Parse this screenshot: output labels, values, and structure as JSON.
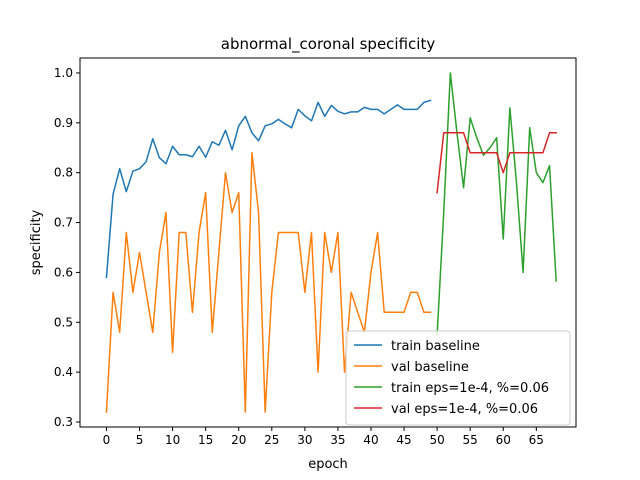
{
  "chart_data": {
    "type": "line",
    "title": "abnormal_coronal specificity",
    "xlabel": "epoch",
    "ylabel": "specificity",
    "xlim": [
      -4.0,
      71.0
    ],
    "ylim": [
      0.29,
      1.03
    ],
    "xticks": [
      0,
      5,
      10,
      15,
      20,
      25,
      30,
      35,
      40,
      45,
      50,
      55,
      60,
      65
    ],
    "yticks": [
      0.3,
      0.4,
      0.5,
      0.6,
      0.7,
      0.8,
      0.9,
      1.0
    ],
    "ytick_labels": [
      "0.3",
      "0.4",
      "0.5",
      "0.6",
      "0.7",
      "0.8",
      "0.9",
      "1.0"
    ],
    "grid": false,
    "legend_position": "lower-right",
    "series": [
      {
        "name": "train baseline",
        "color": "#1f77b4",
        "x_start": 0,
        "values": [
          0.59,
          0.757,
          0.808,
          0.762,
          0.803,
          0.808,
          0.822,
          0.868,
          0.83,
          0.818,
          0.853,
          0.836,
          0.836,
          0.832,
          0.853,
          0.831,
          0.862,
          0.855,
          0.885,
          0.846,
          0.894,
          0.913,
          0.88,
          0.864,
          0.894,
          0.898,
          0.907,
          0.898,
          0.89,
          0.927,
          0.914,
          0.904,
          0.941,
          0.913,
          0.935,
          0.923,
          0.918,
          0.922,
          0.922,
          0.931,
          0.927,
          0.927,
          0.918,
          0.927,
          0.936,
          0.927,
          0.927,
          0.927,
          0.941,
          0.945
        ]
      },
      {
        "name": "val baseline",
        "color": "#ff7f0e",
        "x_start": 0,
        "values": [
          0.32,
          0.56,
          0.48,
          0.68,
          0.56,
          0.64,
          0.56,
          0.48,
          0.64,
          0.72,
          0.44,
          0.68,
          0.68,
          0.52,
          0.68,
          0.76,
          0.48,
          0.64,
          0.8,
          0.72,
          0.76,
          0.32,
          0.84,
          0.72,
          0.32,
          0.56,
          0.68,
          0.68,
          0.68,
          0.68,
          0.56,
          0.68,
          0.4,
          0.68,
          0.6,
          0.68,
          0.4,
          0.56,
          0.52,
          0.48,
          0.6,
          0.68,
          0.52,
          0.52,
          0.52,
          0.52,
          0.56,
          0.56,
          0.52,
          0.52
        ]
      },
      {
        "name": "train eps=1e-4, %=0.06",
        "color": "#2ca02c",
        "x_start": 50,
        "values": [
          0.475,
          0.72,
          1.0,
          0.88,
          0.77,
          0.91,
          0.87,
          0.835,
          0.85,
          0.87,
          0.667,
          0.93,
          0.78,
          0.6,
          0.89,
          0.8,
          0.78,
          0.814,
          0.583
        ]
      },
      {
        "name": "val eps=1e-4, %=0.06",
        "color": "#d62728",
        "x_start": 50,
        "values": [
          0.76,
          0.88,
          0.88,
          0.88,
          0.88,
          0.84,
          0.84,
          0.84,
          0.84,
          0.84,
          0.8,
          0.84,
          0.84,
          0.84,
          0.84,
          0.84,
          0.84,
          0.88,
          0.88
        ]
      }
    ]
  }
}
